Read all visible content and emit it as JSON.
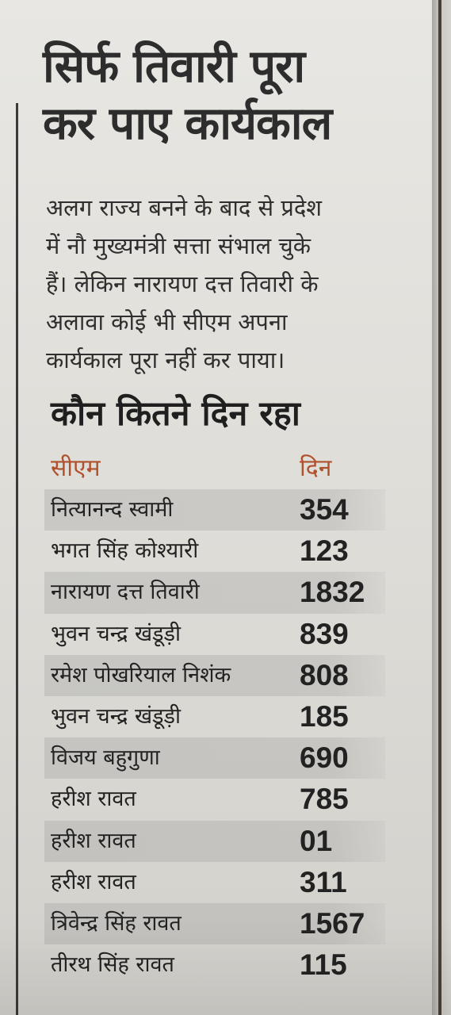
{
  "headline": {
    "line1": "सिर्फ तिवारी पूरा",
    "line2": "कर पाए कार्यकाल"
  },
  "intro": {
    "line1": "अलग राज्य बनने के बाद से प्रदेश",
    "line2": "में नौ मुख्यमंत्री सत्ता संभाल चुके",
    "line3": "हैं। लेकिन नारायण दत्त तिवारी के",
    "line4": "अलावा कोई भी सीएम अपना",
    "line5": "कार्यकाल पूरा नहीं कर पाया।"
  },
  "subhead": "कौन कितने दिन रहा",
  "table": {
    "headers": {
      "name": "सीएम",
      "days": "दिन"
    },
    "rows": [
      {
        "name": "नित्यानन्द स्वामी",
        "days": "354"
      },
      {
        "name": "भगत सिंह कोश्यारी",
        "days": "123"
      },
      {
        "name": "नारायण दत्त तिवारी",
        "days": "1832"
      },
      {
        "name": "भुवन चन्द्र खंडूड़ी",
        "days": "839"
      },
      {
        "name": "रमेश पोखरियाल निशंक",
        "days": "808"
      },
      {
        "name": "भुवन चन्द्र खंडूड़ी",
        "days": "185"
      },
      {
        "name": "विजय बहुगुणा",
        "days": "690"
      },
      {
        "name": "हरीश रावत",
        "days": "785"
      },
      {
        "name": "हरीश रावत",
        "days": "01"
      },
      {
        "name": "हरीश रावत",
        "days": "311"
      },
      {
        "name": "त्रिवेन्द्र सिंह रावत",
        "days": "1567"
      },
      {
        "name": "तीरथ सिंह रावत",
        "days": "115"
      }
    ]
  },
  "colors": {
    "paper": "#e4e3df",
    "header_accent": "#b0512e",
    "row_shade": "#a0a09e",
    "text": "#222222"
  }
}
